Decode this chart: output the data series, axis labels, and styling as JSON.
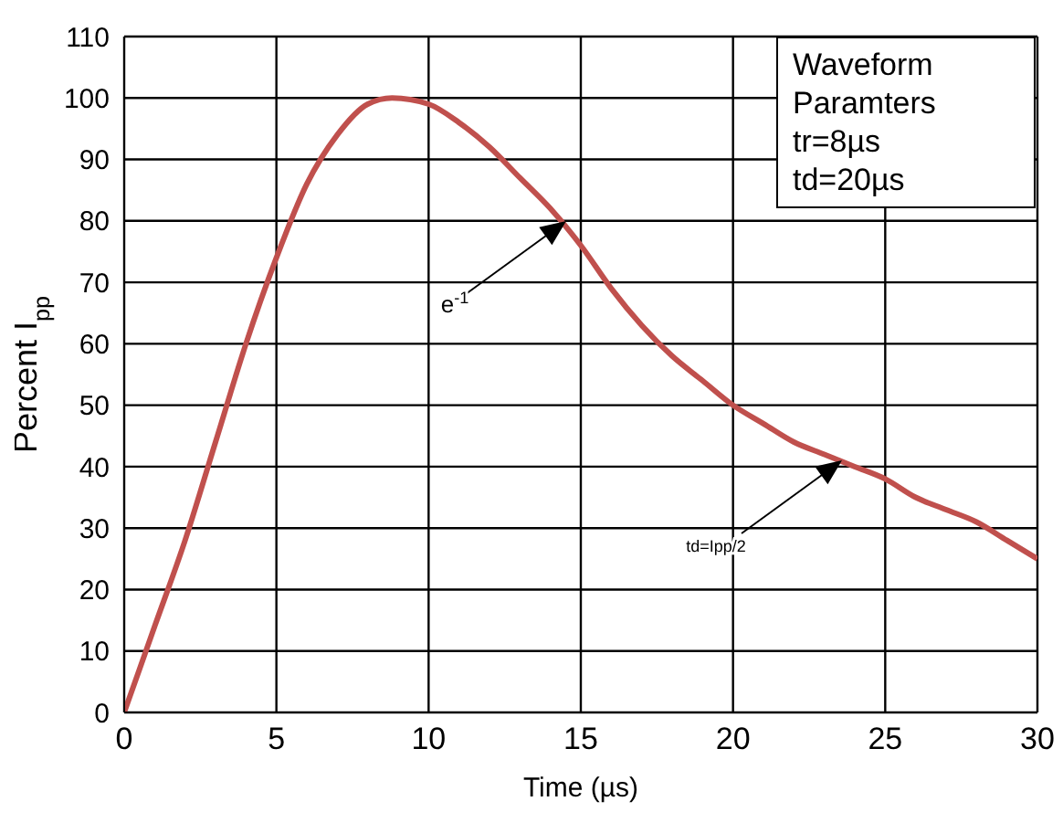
{
  "chart_data": {
    "type": "line",
    "xlabel": "Time (µs)",
    "ylabel": "Percent    I$_{pp}$",
    "x": [
      0,
      1,
      2,
      3,
      4,
      5,
      6,
      7,
      8,
      8.8,
      10,
      11,
      12,
      13,
      14,
      15,
      16,
      17,
      18,
      19,
      20,
      21,
      22,
      23,
      24,
      25,
      26,
      27,
      28,
      29,
      30
    ],
    "series": [
      {
        "color": "#c0504d",
        "values": [
          0,
          14,
          28,
          44,
          60,
          74,
          86,
          94,
          99,
          100,
          99,
          96,
          92,
          87,
          82,
          76,
          69,
          63,
          58,
          54,
          50,
          47,
          44,
          42,
          40,
          38,
          35,
          33,
          31,
          28,
          25
        ]
      }
    ],
    "xlim": [
      0,
      30
    ],
    "xticks": [
      0,
      5,
      10,
      15,
      20,
      25,
      30
    ],
    "ylim": [
      0,
      110
    ],
    "yticks": [
      0,
      10,
      20,
      30,
      40,
      50,
      60,
      70,
      80,
      90,
      100,
      110
    ],
    "grid": true,
    "marker": "none",
    "line_style": "solid",
    "legend": false,
    "annotations": [
      "Waveform",
      "Paramters",
      "tr=8µs",
      "td=20µs",
      "e$^{-1}$",
      "td=Ipp/2"
    ]
  }
}
